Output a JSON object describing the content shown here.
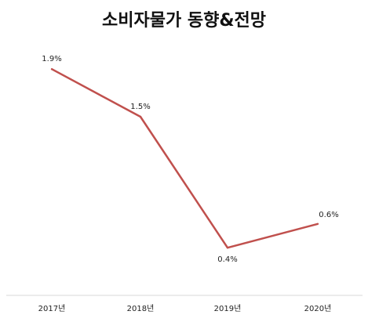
{
  "chart_data": {
    "type": "line",
    "title": "소비자물가 동향&전망",
    "categories": [
      "2017년",
      "2018년",
      "2019년",
      "2020년"
    ],
    "series": [
      {
        "values": [
          1.9,
          1.5,
          0.4,
          0.6
        ],
        "data_labels": [
          "1.9%",
          "1.5%",
          "0.4%",
          "0.6%"
        ],
        "color": "#c0504d"
      }
    ],
    "ylim": [
      0,
      2
    ],
    "grid": false,
    "legend": "none",
    "axis_line_color": "#d9d9d9"
  }
}
